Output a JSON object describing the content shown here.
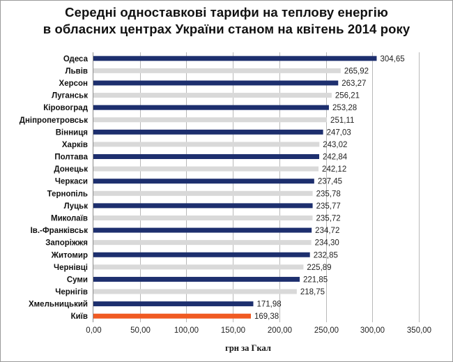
{
  "chart_data": {
    "type": "bar",
    "orientation": "horizontal",
    "title_lines": [
      "Середні одноставкові тарифи на теплову енергію",
      "в обласних центрах України станом на квітень 2014 року"
    ],
    "xlabel": "грн за Гкал",
    "ylabel": "",
    "xlim": [
      0,
      350
    ],
    "x_ticks": [
      "0,00",
      "50,00",
      "100,00",
      "150,00",
      "200,00",
      "250,00",
      "300,00",
      "350,00"
    ],
    "grid": "vertical",
    "categories": [
      "Одеса",
      "Львів",
      "Херсон",
      "Луганськ",
      "Кіровоград",
      "Дніпропетровськ",
      "Вінниця",
      "Харків",
      "Полтава",
      "Донецьк",
      "Черкаси",
      "Тернопіль",
      "Луцьк",
      "Миколаїв",
      "Ів.-Франківськ",
      "Запоріжжя",
      "Житомир",
      "Чернівці",
      "Суми",
      "Чернігів",
      "Хмельницький",
      "Київ"
    ],
    "values": [
      304.65,
      265.92,
      263.27,
      256.21,
      253.28,
      251.11,
      247.03,
      243.02,
      242.84,
      242.12,
      237.45,
      235.78,
      235.77,
      235.72,
      234.72,
      234.3,
      232.85,
      225.89,
      221.85,
      218.75,
      171.98,
      169.38
    ],
    "value_labels": [
      "304,65",
      "265,92",
      "263,27",
      "256,21",
      "253,28",
      "251,11",
      "247,03",
      "243,02",
      "242,84",
      "242,12",
      "237,45",
      "235,78",
      "235,77",
      "235,72",
      "234,72",
      "234,30",
      "232,85",
      "225,89",
      "221,85",
      "218,75",
      "171,98",
      "169,38"
    ],
    "colors": {
      "dark": "#1d2f6e",
      "light": "#d9d9d9",
      "highlight": "#f05a22",
      "grid": "#b8b8b8"
    },
    "bar_color_keys": [
      "dark",
      "light",
      "dark",
      "light",
      "dark",
      "light",
      "dark",
      "light",
      "dark",
      "light",
      "dark",
      "light",
      "dark",
      "light",
      "dark",
      "light",
      "dark",
      "light",
      "dark",
      "light",
      "dark",
      "highlight"
    ]
  }
}
